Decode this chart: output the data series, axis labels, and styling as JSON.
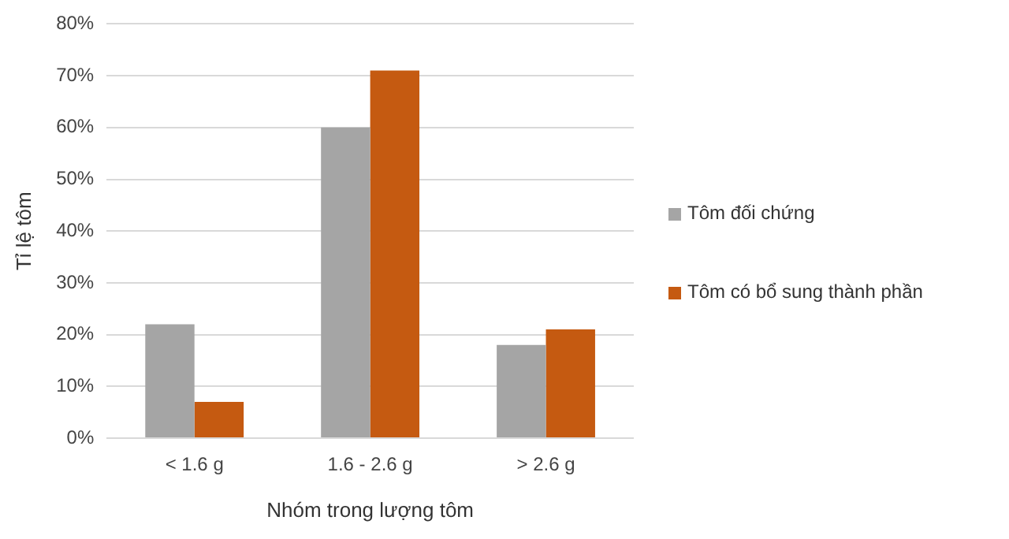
{
  "chart_data": {
    "type": "bar",
    "xlabel": "Nhóm trong lượng tôm",
    "ylabel": "Tỉ lệ tôm",
    "categories": [
      "< 1.6 g",
      "1.6 - 2.6 g",
      "> 2.6 g"
    ],
    "series": [
      {
        "name": "Tôm đối chứng",
        "color": "#a5a5a5",
        "values": [
          22,
          60,
          18
        ]
      },
      {
        "name": "Tôm có bổ sung thành phần",
        "color": "#c55a11",
        "values": [
          7,
          71,
          21
        ]
      }
    ],
    "ylim": [
      0,
      80
    ],
    "yticks": [
      {
        "value": 0,
        "label": "0%"
      },
      {
        "value": 10,
        "label": "10%"
      },
      {
        "value": 20,
        "label": "20%"
      },
      {
        "value": 30,
        "label": "30%"
      },
      {
        "value": 40,
        "label": "40%"
      },
      {
        "value": 50,
        "label": "50%"
      },
      {
        "value": 60,
        "label": "60%"
      },
      {
        "value": 70,
        "label": "70%"
      },
      {
        "value": 80,
        "label": "80%"
      }
    ],
    "grid": "y",
    "legend": "right"
  }
}
